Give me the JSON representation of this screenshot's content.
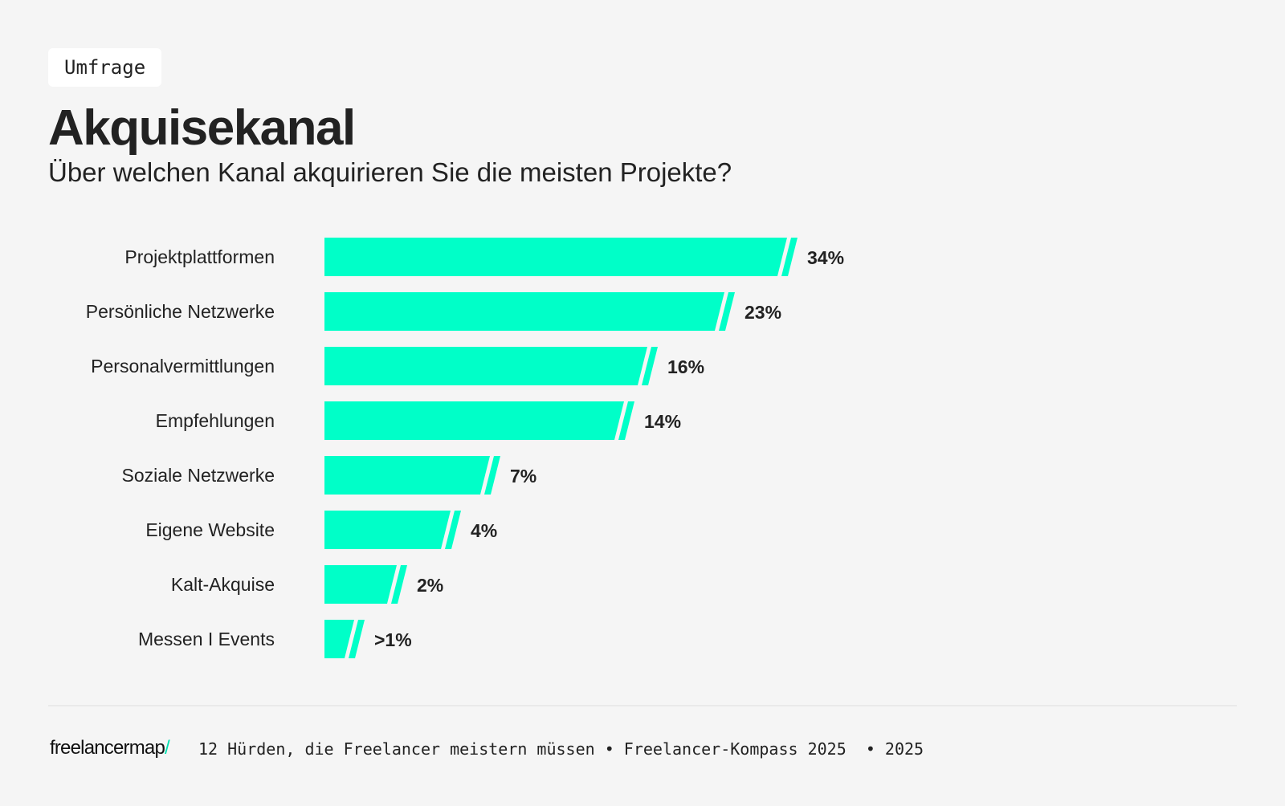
{
  "header": {
    "tag": "Umfrage",
    "title": "Akquisekanal",
    "subtitle": "Über welchen Kanal akquirieren Sie die meisten Projekte?"
  },
  "chart_data": {
    "type": "bar",
    "orientation": "horizontal",
    "categories": [
      "Projektplattformen",
      "Persönliche Netzwerke",
      "Personalvermittlungen",
      "Empfehlungen",
      "Soziale Netzwerke",
      "Eigene Website",
      "Kalt-Akquise",
      "Messen I Events"
    ],
    "values": [
      34,
      23,
      16,
      14,
      7,
      4,
      2,
      1
    ],
    "data_labels": [
      "34%",
      "23%",
      "16%",
      "14%",
      "7%",
      "4%",
      "2%",
      ">1%"
    ],
    "axis_break": true,
    "grid": false,
    "bar_color": "#00FFC8"
  },
  "footer": {
    "logo": "freelancermap",
    "logo_slash": "/",
    "text": "12 Hürden, die Freelancer meistern müssen • Freelancer-Kompass 2025  • 2025"
  }
}
